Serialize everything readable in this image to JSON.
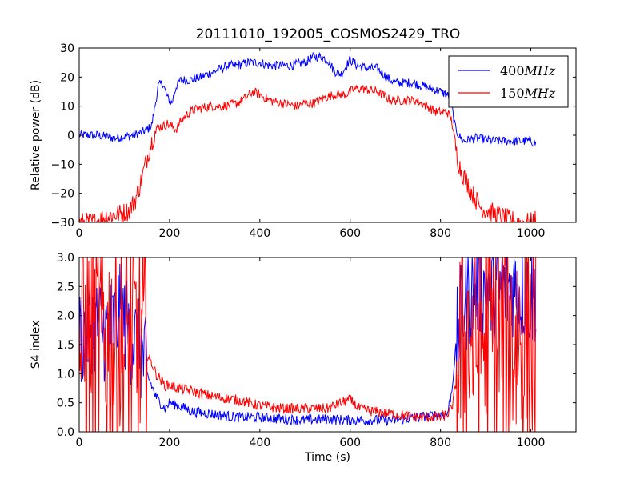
{
  "figure": {
    "title": "20111010_192005_COSMOS2429_TRO",
    "background": "#ffffff"
  },
  "chart_data": [
    {
      "type": "line",
      "title": "20111010_192005_COSMOS2429_TRO",
      "xlabel": "",
      "ylabel": "Relative power (dB)",
      "xlim": [
        0,
        1100
      ],
      "ylim": [
        -30,
        30
      ],
      "xticks": [
        "0",
        "200",
        "400",
        "600",
        "800",
        "1000"
      ],
      "yticks": [
        "−30",
        "−20",
        "−10",
        "0",
        "10",
        "20",
        "30"
      ],
      "grid": false,
      "legend": "top-right",
      "series": [
        {
          "name": "400MHz",
          "color": "#0000ff",
          "x": [
            0,
            40,
            80,
            120,
            140,
            160,
            170,
            175,
            185,
            195,
            205,
            215,
            225,
            245,
            270,
            300,
            330,
            350,
            375,
            400,
            420,
            445,
            470,
            500,
            520,
            535,
            550,
            565,
            580,
            600,
            615,
            640,
            660,
            680,
            700,
            720,
            740,
            760,
            780,
            800,
            815,
            825,
            832,
            840,
            850,
            880,
            920,
            960,
            1000,
            1012
          ],
          "y": [
            0,
            0,
            -1,
            0,
            1,
            3,
            12,
            17,
            18,
            13,
            11,
            17,
            19,
            19,
            20,
            22,
            24,
            24,
            25,
            25,
            24,
            24,
            24,
            25,
            27,
            27,
            26,
            22,
            21,
            26,
            24,
            23,
            23,
            20,
            18,
            18,
            18,
            17,
            16,
            15,
            14,
            10,
            3,
            0,
            -2,
            -1,
            -2,
            -2,
            -2,
            -3
          ]
        },
        {
          "name": "150MHz",
          "color": "#ff0000",
          "x": [
            0,
            30,
            60,
            90,
            110,
            125,
            135,
            145,
            155,
            165,
            175,
            185,
            195,
            205,
            215,
            225,
            245,
            260,
            290,
            320,
            350,
            370,
            385,
            400,
            420,
            450,
            480,
            500,
            520,
            545,
            565,
            590,
            610,
            630,
            660,
            690,
            720,
            745,
            770,
            790,
            805,
            815,
            825,
            832,
            838,
            845,
            855,
            870,
            890,
            920,
            950,
            980,
            1000,
            1012
          ],
          "y": [
            -30,
            -30,
            -28,
            -27,
            -26,
            -22,
            -17,
            -11,
            -5,
            0,
            3,
            3,
            4,
            3,
            2,
            5,
            8,
            9,
            10,
            10,
            11,
            13,
            15,
            14,
            12,
            11,
            10,
            11,
            11,
            13,
            14,
            14,
            16,
            16,
            15,
            12,
            12,
            12,
            10,
            8,
            8,
            8,
            5,
            -3,
            -8,
            -12,
            -15,
            -20,
            -25,
            -27,
            -29,
            -30,
            -30,
            -29
          ]
        }
      ]
    },
    {
      "type": "line",
      "title": "",
      "xlabel": "Time (s)",
      "ylabel": "S4 index",
      "xlim": [
        0,
        1100
      ],
      "ylim": [
        0,
        3
      ],
      "xticks": [
        "0",
        "200",
        "400",
        "600",
        "800",
        "1000"
      ],
      "yticks": [
        "0.0",
        "0.5",
        "1.0",
        "1.5",
        "2.0",
        "2.5",
        "3.0"
      ],
      "grid": false,
      "legend": "none",
      "series": [
        {
          "name": "400MHz",
          "color": "#0000ff",
          "x": [
            0,
            30,
            60,
            90,
            120,
            140,
            150,
            160,
            170,
            180,
            190,
            200,
            220,
            250,
            300,
            350,
            400,
            450,
            500,
            550,
            600,
            650,
            700,
            750,
            800,
            815,
            825,
            832,
            838,
            845,
            860,
            880,
            920,
            960,
            1000,
            1012
          ],
          "y": [
            1.6,
            1.9,
            1.7,
            2.0,
            1.6,
            1.3,
            1.0,
            0.8,
            0.6,
            0.5,
            0.4,
            0.5,
            0.45,
            0.35,
            0.3,
            0.25,
            0.25,
            0.22,
            0.2,
            0.22,
            0.2,
            0.2,
            0.2,
            0.25,
            0.3,
            0.3,
            0.7,
            1.3,
            1.7,
            2.0,
            2.3,
            2.5,
            2.4,
            2.5,
            2.3,
            2.4
          ]
        },
        {
          "name": "150MHz",
          "color": "#ff0000",
          "x": [
            0,
            30,
            60,
            90,
            120,
            140,
            150,
            160,
            170,
            180,
            190,
            200,
            220,
            250,
            300,
            350,
            400,
            450,
            500,
            550,
            580,
            600,
            620,
            650,
            700,
            750,
            800,
            815,
            825,
            832,
            838,
            845,
            860,
            880,
            920,
            960,
            1000,
            1012
          ],
          "y": [
            1.5,
            1.5,
            1.5,
            1.5,
            1.5,
            1.4,
            1.3,
            1.2,
            1.0,
            0.9,
            0.8,
            0.8,
            0.75,
            0.7,
            0.6,
            0.55,
            0.45,
            0.4,
            0.4,
            0.4,
            0.5,
            0.55,
            0.4,
            0.35,
            0.3,
            0.25,
            0.25,
            0.3,
            0.4,
            0.7,
            1.0,
            1.3,
            1.6,
            1.6,
            1.6,
            1.6,
            1.6,
            1.6
          ]
        }
      ]
    }
  ]
}
